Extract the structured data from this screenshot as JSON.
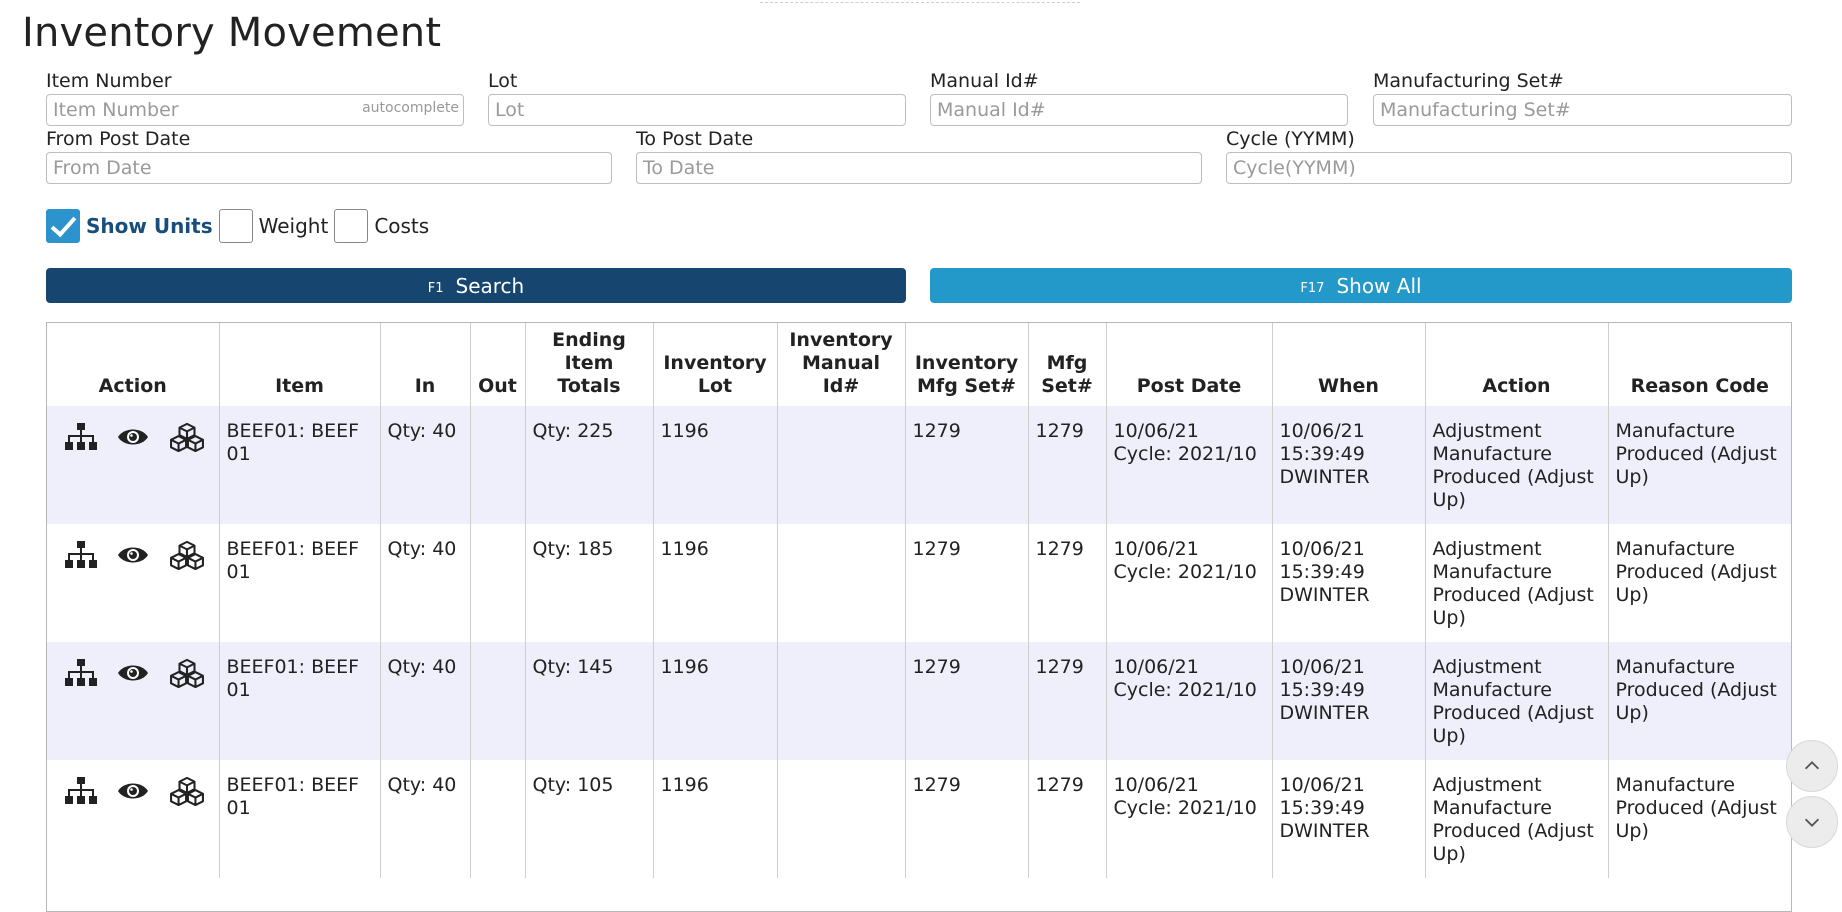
{
  "page": {
    "title": "Inventory Movement"
  },
  "filters": {
    "item_number": {
      "label": "Item Number",
      "placeholder": "Item Number",
      "hint": "autocomplete",
      "value": ""
    },
    "lot": {
      "label": "Lot",
      "placeholder": "Lot",
      "value": ""
    },
    "manual_id": {
      "label": "Manual Id#",
      "placeholder": "Manual Id#",
      "value": ""
    },
    "mfg_set": {
      "label": "Manufacturing Set#",
      "placeholder": "Manufacturing Set#",
      "value": ""
    },
    "from_date": {
      "label": "From Post Date",
      "placeholder": "From Date",
      "value": ""
    },
    "to_date": {
      "label": "To Post Date",
      "placeholder": "To Date",
      "value": ""
    },
    "cycle": {
      "label": "Cycle (YYMM)",
      "placeholder": "Cycle(YYMM)",
      "value": ""
    }
  },
  "options": {
    "show_units": {
      "label": "Show Units",
      "checked": true
    },
    "weight": {
      "label": "Weight",
      "checked": false
    },
    "costs": {
      "label": "Costs",
      "checked": false
    }
  },
  "buttons": {
    "search": {
      "key": "F1",
      "label": "Search"
    },
    "show_all": {
      "key": "F17",
      "label": "Show All"
    }
  },
  "colors": {
    "primary": "#164670",
    "secondary": "#2399c9",
    "checkbox": "#2c93cd",
    "row_alt": "#efeffb"
  },
  "table": {
    "headers": [
      "Action",
      "Item",
      "In",
      "Out",
      "Ending Item Totals",
      "Inventory Lot",
      "Inventory Manual Id#",
      "Inventory Mfg Set#",
      "Mfg Set#",
      "Post Date",
      "When",
      "Action",
      "Reason Code"
    ],
    "row_icons": [
      "hierarchy-icon",
      "eye-icon",
      "cubes-icon"
    ],
    "rows": [
      {
        "item": "BEEF01: BEEF 01",
        "in": "Qty: 40",
        "out": "",
        "ending": "Qty: 225",
        "lot": "1196",
        "manual_id": "",
        "inv_mfg_set": "1279",
        "mfg_set": "1279",
        "post_date": "10/06/21",
        "cycle": "Cycle: 2021/10",
        "when_date": "10/06/21",
        "when_time": "15:39:49",
        "when_user": "DWINTER",
        "action": "Adjustment Manufacture Produced (Adjust Up)",
        "reason": "Manufacture Produced (Adjust Up)"
      },
      {
        "item": "BEEF01: BEEF 01",
        "in": "Qty: 40",
        "out": "",
        "ending": "Qty: 185",
        "lot": "1196",
        "manual_id": "",
        "inv_mfg_set": "1279",
        "mfg_set": "1279",
        "post_date": "10/06/21",
        "cycle": "Cycle: 2021/10",
        "when_date": "10/06/21",
        "when_time": "15:39:49",
        "when_user": "DWINTER",
        "action": "Adjustment Manufacture Produced (Adjust Up)",
        "reason": "Manufacture Produced (Adjust Up)"
      },
      {
        "item": "BEEF01: BEEF 01",
        "in": "Qty: 40",
        "out": "",
        "ending": "Qty: 145",
        "lot": "1196",
        "manual_id": "",
        "inv_mfg_set": "1279",
        "mfg_set": "1279",
        "post_date": "10/06/21",
        "cycle": "Cycle: 2021/10",
        "when_date": "10/06/21",
        "when_time": "15:39:49",
        "when_user": "DWINTER",
        "action": "Adjustment Manufacture Produced (Adjust Up)",
        "reason": "Manufacture Produced (Adjust Up)"
      },
      {
        "item": "BEEF01: BEEF 01",
        "in": "Qty: 40",
        "out": "",
        "ending": "Qty: 105",
        "lot": "1196",
        "manual_id": "",
        "inv_mfg_set": "1279",
        "mfg_set": "1279",
        "post_date": "10/06/21",
        "cycle": "Cycle: 2021/10",
        "when_date": "10/06/21",
        "when_time": "15:39:49",
        "when_user": "DWINTER",
        "action": "Adjustment Manufacture Produced (Adjust Up)",
        "reason": "Manufacture Produced (Adjust Up)"
      }
    ]
  },
  "scroll": {
    "up_icon": "chevron-up-icon",
    "down_icon": "chevron-down-icon"
  }
}
